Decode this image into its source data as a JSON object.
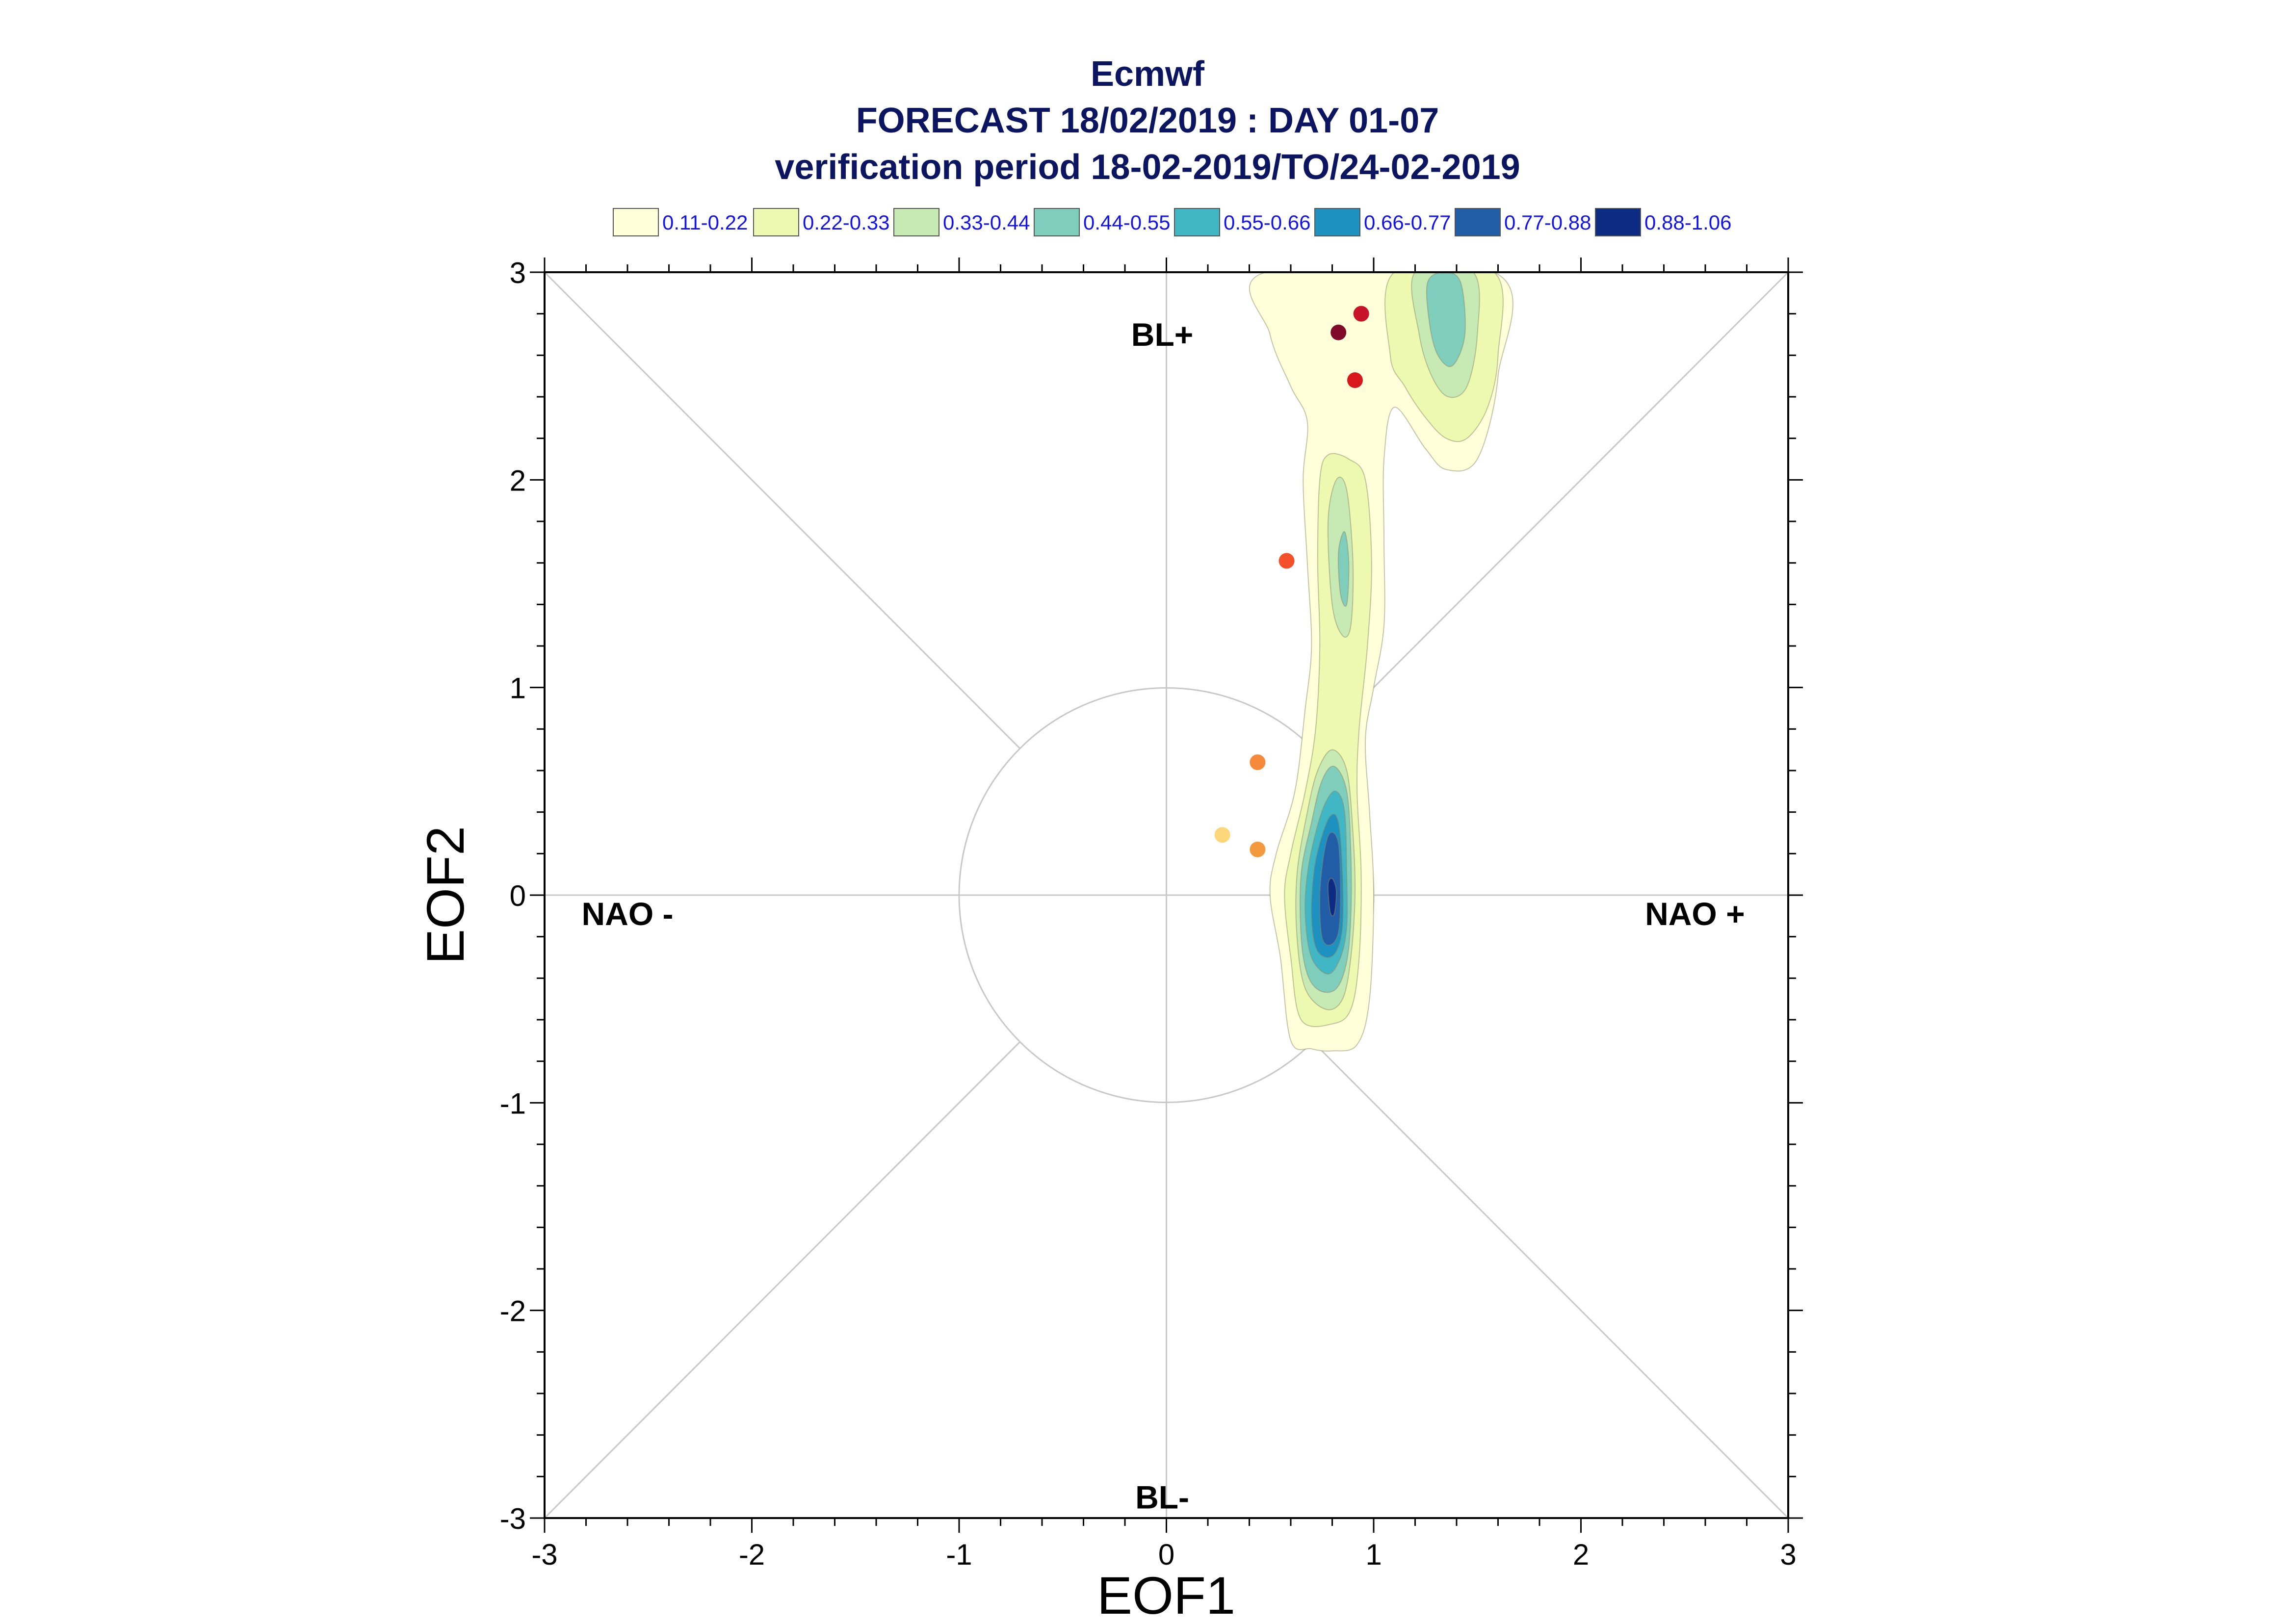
{
  "chart_data": {
    "type": "contour",
    "title": "Ecmwf",
    "subtitle": "FORECAST 18/02/2019 : DAY 01-07",
    "subtitle2": "verification period 18-02-2019/TO/24-02-2019",
    "xlabel": "EOF1",
    "ylabel": "EOF2",
    "xlim": [
      -3,
      3
    ],
    "ylim": [
      -3,
      3
    ],
    "xticks": [
      -3,
      -2,
      -1,
      0,
      1,
      2,
      3
    ],
    "yticks": [
      -3,
      -2,
      -1,
      0,
      1,
      2,
      3
    ],
    "xtick_labels": [
      "-3",
      "-2",
      "-1",
      "0",
      "1",
      "2",
      "3"
    ],
    "ytick_labels": [
      "-3",
      "-2",
      "-1",
      "0",
      "1",
      "2",
      "3"
    ],
    "unit_circle_radius": 1,
    "diagonals": true,
    "region_labels": [
      {
        "text": "BL+",
        "x": -0.02,
        "y": 2.7
      },
      {
        "text": "BL-",
        "x": -0.02,
        "y": -2.9
      },
      {
        "text": "NAO -",
        "x": -2.6,
        "y": -0.09
      },
      {
        "text": "NAO +",
        "x": 2.55,
        "y": -0.09
      }
    ],
    "legend": {
      "placement": "top",
      "entries": [
        {
          "label": "0.11-0.22",
          "color": "#ffffd9"
        },
        {
          "label": "0.22-0.33",
          "color": "#edf8b1"
        },
        {
          "label": "0.33-0.44",
          "color": "#c7e9b4"
        },
        {
          "label": "0.44-0.55",
          "color": "#7fcdbb"
        },
        {
          "label": "0.55-0.66",
          "color": "#41b6c4"
        },
        {
          "label": "0.66-0.77",
          "color": "#1d91c0"
        },
        {
          "label": "0.77-0.88",
          "color": "#225ea8"
        },
        {
          "label": "0.88-1.06",
          "color": "#0c2c84"
        }
      ]
    },
    "points": [
      {
        "x": 0.83,
        "y": 2.71,
        "color": "#7f0a2a"
      },
      {
        "x": 0.94,
        "y": 2.8,
        "color": "#c81428"
      },
      {
        "x": 0.91,
        "y": 2.48,
        "color": "#d7191c"
      },
      {
        "x": 0.58,
        "y": 1.61,
        "color": "#f4502a"
      },
      {
        "x": 0.44,
        "y": 0.64,
        "color": "#f68a3c"
      },
      {
        "x": 0.44,
        "y": 0.22,
        "color": "#f49a3e"
      },
      {
        "x": 0.27,
        "y": 0.29,
        "color": "#fdd57a"
      }
    ],
    "density_levels": [
      {
        "level": "0.11-0.22",
        "blobs": [
          [
            [
              0.6,
              -0.7
            ],
            [
              0.55,
              -0.3
            ],
            [
              0.5,
              0.0
            ],
            [
              0.53,
              0.2
            ],
            [
              0.62,
              0.5
            ],
            [
              0.67,
              0.9
            ],
            [
              0.7,
              1.2
            ],
            [
              0.68,
              1.6
            ],
            [
              0.66,
              2.0
            ],
            [
              0.68,
              2.28
            ],
            [
              0.6,
              2.45
            ],
            [
              0.5,
              2.7
            ],
            [
              0.48,
              3.0
            ],
            [
              1.58,
              3.0
            ],
            [
              1.6,
              2.5
            ],
            [
              1.5,
              2.1
            ],
            [
              1.35,
              2.05
            ],
            [
              1.25,
              2.15
            ],
            [
              1.1,
              2.35
            ],
            [
              1.05,
              2.1
            ],
            [
              1.05,
              1.7
            ],
            [
              1.05,
              1.3
            ],
            [
              1.0,
              1.0
            ],
            [
              0.96,
              0.75
            ],
            [
              0.98,
              0.4
            ],
            [
              1.0,
              0.0
            ],
            [
              0.98,
              -0.5
            ],
            [
              0.92,
              -0.72
            ],
            [
              0.8,
              -0.75
            ],
            [
              0.7,
              -0.74
            ]
          ]
        ]
      },
      {
        "level": "0.22-0.33",
        "blobs": [
          [
            [
              0.65,
              -0.6
            ],
            [
              0.6,
              -0.3
            ],
            [
              0.57,
              0.0
            ],
            [
              0.6,
              0.2
            ],
            [
              0.67,
              0.5
            ],
            [
              0.72,
              0.8
            ],
            [
              0.74,
              1.2
            ],
            [
              0.73,
              1.6
            ],
            [
              0.74,
              2.0
            ],
            [
              0.78,
              2.12
            ],
            [
              0.88,
              2.1
            ],
            [
              0.96,
              2.0
            ],
            [
              0.99,
              1.6
            ],
            [
              0.97,
              1.2
            ],
            [
              0.93,
              0.8
            ],
            [
              0.92,
              0.5
            ],
            [
              0.94,
              0.1
            ],
            [
              0.93,
              -0.3
            ],
            [
              0.89,
              -0.55
            ],
            [
              0.8,
              -0.62
            ]
          ],
          [
            [
              1.08,
              2.6
            ],
            [
              1.1,
              3.0
            ],
            [
              1.58,
              3.0
            ],
            [
              1.6,
              2.6
            ],
            [
              1.55,
              2.35
            ],
            [
              1.45,
              2.2
            ],
            [
              1.35,
              2.2
            ],
            [
              1.25,
              2.3
            ],
            [
              1.15,
              2.45
            ]
          ]
        ]
      },
      {
        "level": "0.33-0.44",
        "blobs": [
          [
            [
              0.67,
              -0.45
            ],
            [
              0.63,
              -0.2
            ],
            [
              0.63,
              0.1
            ],
            [
              0.68,
              0.4
            ],
            [
              0.73,
              0.6
            ],
            [
              0.8,
              0.7
            ],
            [
              0.87,
              0.6
            ],
            [
              0.9,
              0.3
            ],
            [
              0.91,
              0.0
            ],
            [
              0.89,
              -0.3
            ],
            [
              0.85,
              -0.5
            ],
            [
              0.77,
              -0.55
            ]
          ],
          [
            [
              0.8,
              1.4
            ],
            [
              0.78,
              1.8
            ],
            [
              0.82,
              2.0
            ],
            [
              0.87,
              1.95
            ],
            [
              0.9,
              1.6
            ],
            [
              0.89,
              1.3
            ],
            [
              0.85,
              1.25
            ]
          ],
          [
            [
              1.22,
              2.7
            ],
            [
              1.2,
              3.0
            ],
            [
              1.48,
              3.0
            ],
            [
              1.5,
              2.7
            ],
            [
              1.45,
              2.45
            ],
            [
              1.36,
              2.4
            ],
            [
              1.28,
              2.5
            ]
          ]
        ]
      },
      {
        "level": "0.44-0.55",
        "blobs": [
          [
            [
              0.68,
              -0.38
            ],
            [
              0.65,
              -0.2
            ],
            [
              0.65,
              0.1
            ],
            [
              0.7,
              0.35
            ],
            [
              0.75,
              0.55
            ],
            [
              0.81,
              0.62
            ],
            [
              0.87,
              0.5
            ],
            [
              0.89,
              0.2
            ],
            [
              0.89,
              -0.1
            ],
            [
              0.87,
              -0.32
            ],
            [
              0.82,
              -0.45
            ],
            [
              0.74,
              -0.46
            ]
          ],
          [
            [
              0.84,
              1.45
            ],
            [
              0.83,
              1.65
            ],
            [
              0.86,
              1.75
            ],
            [
              0.88,
              1.6
            ],
            [
              0.87,
              1.4
            ]
          ],
          [
            [
              1.27,
              2.75
            ],
            [
              1.26,
              2.95
            ],
            [
              1.34,
              3.0
            ],
            [
              1.42,
              2.95
            ],
            [
              1.44,
              2.7
            ],
            [
              1.38,
              2.55
            ],
            [
              1.31,
              2.6
            ]
          ]
        ]
      },
      {
        "level": "0.55-0.66",
        "blobs": [
          [
            [
              0.7,
              -0.3
            ],
            [
              0.67,
              -0.1
            ],
            [
              0.68,
              0.1
            ],
            [
              0.72,
              0.3
            ],
            [
              0.77,
              0.45
            ],
            [
              0.82,
              0.5
            ],
            [
              0.86,
              0.4
            ],
            [
              0.87,
              0.1
            ],
            [
              0.87,
              -0.15
            ],
            [
              0.84,
              -0.3
            ],
            [
              0.78,
              -0.38
            ]
          ]
        ]
      },
      {
        "level": "0.66-0.77",
        "blobs": [
          [
            [
              0.72,
              -0.25
            ],
            [
              0.7,
              -0.1
            ],
            [
              0.71,
              0.1
            ],
            [
              0.74,
              0.25
            ],
            [
              0.79,
              0.38
            ],
            [
              0.83,
              0.35
            ],
            [
              0.85,
              0.1
            ],
            [
              0.85,
              -0.15
            ],
            [
              0.82,
              -0.27
            ],
            [
              0.77,
              -0.3
            ]
          ]
        ]
      },
      {
        "level": "0.77-0.88",
        "blobs": [
          [
            [
              0.75,
              -0.2
            ],
            [
              0.74,
              0.0
            ],
            [
              0.76,
              0.2
            ],
            [
              0.79,
              0.3
            ],
            [
              0.83,
              0.25
            ],
            [
              0.84,
              0.0
            ],
            [
              0.83,
              -0.18
            ],
            [
              0.79,
              -0.24
            ]
          ]
        ]
      },
      {
        "level": "0.88-1.06",
        "blobs": [
          [
            [
              0.79,
              -0.08
            ],
            [
              0.78,
              0.05
            ],
            [
              0.8,
              0.08
            ],
            [
              0.82,
              0.02
            ],
            [
              0.81,
              -0.09
            ]
          ]
        ]
      }
    ]
  }
}
